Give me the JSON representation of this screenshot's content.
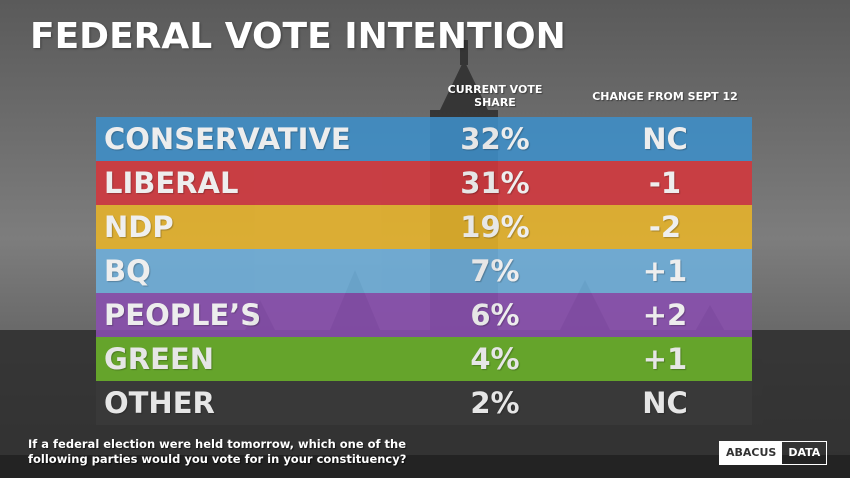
{
  "title": "FEDERAL VOTE INTENTION",
  "columns": {
    "share": "CURRENT VOTE SHARE",
    "change": "CHANGE FROM SEPT 12"
  },
  "question": "If a federal election were held tomorrow, which one of the following parties would you vote for in your constituency?",
  "logo": {
    "left": "ABACUS",
    "right": "DATA"
  },
  "chart_data": {
    "type": "table",
    "title": "FEDERAL VOTE INTENTION",
    "columns": [
      "CURRENT VOTE SHARE",
      "CHANGE FROM SEPT 12"
    ],
    "rows": [
      {
        "party": "CONSERVATIVE",
        "share": "32%",
        "change": "NC",
        "color": "#3e8fc9"
      },
      {
        "party": "LIBERAL",
        "share": "31%",
        "change": "-1",
        "color": "#d4373d"
      },
      {
        "party": "NDP",
        "share": "19%",
        "change": "-2",
        "color": "#e8b42a"
      },
      {
        "party": "BQ",
        "share": "7%",
        "change": "+1",
        "color": "#6fb0dc"
      },
      {
        "party": "PEOPLE’S",
        "share": "6%",
        "change": "+2",
        "color": "#8a4fb0"
      },
      {
        "party": "GREEN",
        "share": "4%",
        "change": "+1",
        "color": "#6cb42a"
      },
      {
        "party": "OTHER",
        "share": "2%",
        "change": "NC",
        "color": "#3a3a3a"
      }
    ]
  }
}
